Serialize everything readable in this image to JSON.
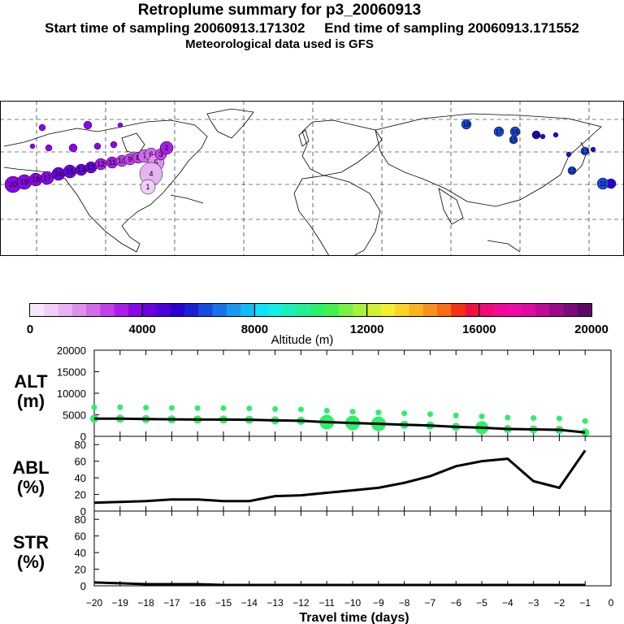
{
  "header": {
    "title": "Retroplume summary for p3_20060913",
    "start_label": "Start time of sampling 20060913.171302",
    "end_label": "End time of sampling 20060913.171552",
    "met_label": "Meteorological data used is GFS"
  },
  "colorbar": {
    "label": "Altitude (m)",
    "ticks": [
      0,
      4000,
      8000,
      12000,
      16000,
      20000
    ],
    "tick_labels": [
      "0",
      "4000",
      "8000",
      "12000",
      "16000",
      "20000"
    ],
    "colors": [
      "#f6e7fa",
      "#f0cff6",
      "#e7b3f3",
      "#de90ef",
      "#d26aec",
      "#c140ea",
      "#aa1ce8",
      "#8a06e6",
      "#6a00e0",
      "#4a00d8",
      "#2b00d2",
      "#1a22d8",
      "#1a4be0",
      "#1a72e8",
      "#1a98f0",
      "#10bdf6",
      "#0fe1fa",
      "#12f0e0",
      "#18f0b8",
      "#20f090",
      "#2af06a",
      "#44f050",
      "#78f044",
      "#a8f03c",
      "#d2f034",
      "#f4f02c",
      "#fad424",
      "#fab420",
      "#fa901c",
      "#fa6c18",
      "#f43214",
      "#f01040",
      "#f00a78",
      "#f00a98",
      "#f00aac",
      "#e00aa4",
      "#c00a98",
      "#9c0a8a",
      "#7c0a7c",
      "#5e0a64"
    ]
  },
  "map": {
    "blobs_purple": [
      {
        "label": "20",
        "color": "#8a06e6"
      },
      {
        "label": "19",
        "color": "#8a06e6"
      },
      {
        "label": "18",
        "color": "#8a06e6"
      },
      {
        "label": "17",
        "color": "#8a06e6"
      },
      {
        "label": "16",
        "color": "#6a00e0"
      },
      {
        "label": "15",
        "color": "#6a00e0"
      },
      {
        "label": "14",
        "color": "#6a00e0"
      },
      {
        "label": "13",
        "color": "#6a00e0"
      },
      {
        "label": "12",
        "color": "#aa1ce8"
      },
      {
        "label": "11",
        "color": "#aa1ce8"
      },
      {
        "label": "10",
        "color": "#c140ea"
      },
      {
        "label": "9",
        "color": "#c140ea"
      },
      {
        "label": "8",
        "color": "#c140ea"
      },
      {
        "label": "7",
        "color": "#d26aec"
      },
      {
        "label": "6",
        "color": "#d26aec"
      },
      {
        "label": "5",
        "color": "#de90ef"
      },
      {
        "label": "4",
        "color": "#e7b3f3"
      },
      {
        "label": "3",
        "color": "#c140ea"
      },
      {
        "label": "2",
        "color": "#aa1ce8"
      },
      {
        "label": "1",
        "color": "#f0cff6"
      }
    ],
    "blobs_blue": [
      {
        "label": "18",
        "color": "#1a4be0"
      },
      {
        "label": "17",
        "color": "#1a4be0"
      },
      {
        "label": "16",
        "color": "#1a4be0"
      },
      {
        "label": "15",
        "color": "#1a4be0"
      },
      {
        "label": "14",
        "color": "#2b00d2"
      },
      {
        "label": "13",
        "color": "#1a4be0"
      },
      {
        "label": "12",
        "color": "#1a4be0"
      },
      {
        "label": "11",
        "color": "#1a4be0"
      }
    ]
  },
  "chart_data": [
    {
      "type": "line",
      "panel": "ALT",
      "ylabel": "ALT\n(m)",
      "ylabel_line1": "ALT",
      "ylabel_line2": "(m)",
      "x": [
        -20,
        -19,
        -18,
        -17,
        -16,
        -15,
        -14,
        -13,
        -12,
        -11,
        -10,
        -9,
        -8,
        -7,
        -6,
        -5,
        -4,
        -3,
        -2,
        -1
      ],
      "values": [
        4100,
        4100,
        4000,
        3950,
        3900,
        3900,
        3850,
        3700,
        3600,
        3300,
        3100,
        2900,
        2700,
        2500,
        2200,
        2000,
        1700,
        1600,
        1500,
        900
      ],
      "ylim": [
        0,
        20000
      ],
      "yticks": [
        0,
        5000,
        10000,
        15000,
        20000
      ],
      "ytick_labels": [
        "0",
        "5000",
        "10000",
        "15000",
        "20000"
      ],
      "scatter_color": "#2af06a"
    },
    {
      "type": "line",
      "panel": "ABL",
      "ylabel_line1": "ABL",
      "ylabel_line2": "(%)",
      "x": [
        -20,
        -19,
        -18,
        -17,
        -16,
        -15,
        -14,
        -13,
        -12,
        -11,
        -10,
        -9,
        -8,
        -7,
        -6,
        -5,
        -4,
        -3,
        -2,
        -1
      ],
      "values": [
        10,
        11,
        12,
        14,
        14,
        12,
        12,
        18,
        19,
        22,
        25,
        28,
        34,
        42,
        54,
        60,
        63,
        36,
        28,
        73
      ],
      "ylim": [
        0,
        90
      ],
      "yticks": [
        0,
        20,
        40,
        60,
        80
      ],
      "ytick_labels": [
        "0",
        "20",
        "40",
        "60",
        "80"
      ]
    },
    {
      "type": "line",
      "panel": "STR",
      "ylabel_line1": "STR",
      "ylabel_line2": "(%)",
      "x": [
        -20,
        -19,
        -18,
        -17,
        -16,
        -15,
        -14,
        -13,
        -12,
        -11,
        -10,
        -9,
        -8,
        -7,
        -6,
        -5,
        -4,
        -3,
        -2,
        -1
      ],
      "values": [
        4,
        3,
        2,
        2,
        2,
        1,
        1,
        1,
        1,
        1,
        1,
        1,
        1,
        1,
        1,
        1,
        1,
        1,
        1,
        1
      ],
      "ylim": [
        0,
        90
      ],
      "yticks": [
        0,
        20,
        40,
        60,
        80
      ],
      "ytick_labels": [
        "0",
        "20",
        "40",
        "60",
        "80"
      ]
    }
  ],
  "xaxis": {
    "label": "Travel time (days)",
    "ticks": [
      -20,
      -19,
      -18,
      -17,
      -16,
      -15,
      -14,
      -13,
      -12,
      -11,
      -10,
      -9,
      -8,
      -7,
      -6,
      -5,
      -4,
      -3,
      -2,
      -1,
      0
    ],
    "tick_labels": [
      "−20",
      "−19",
      "−18",
      "−17",
      "−16",
      "−15",
      "−14",
      "−13",
      "−12",
      "−11",
      "−10",
      "−9",
      "−8",
      "−7",
      "−6",
      "−5",
      "−4",
      "−3",
      "−2",
      "−1",
      "0"
    ]
  }
}
